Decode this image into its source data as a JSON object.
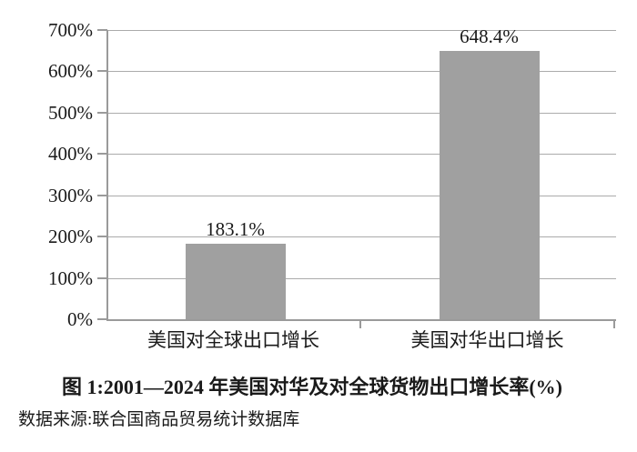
{
  "chart_data": {
    "type": "bar",
    "categories": [
      "美国对全球出口增长",
      "美国对华出口增长"
    ],
    "values": [
      183.1,
      648.4
    ],
    "value_labels": [
      "183.1%",
      "648.4%"
    ],
    "y_tick_values": [
      0,
      100,
      200,
      300,
      400,
      500,
      600,
      700
    ],
    "y_tick_labels": [
      "0%",
      "100%",
      "200%",
      "300%",
      "400%",
      "500%",
      "600%",
      "700%"
    ],
    "ylim": [
      0,
      700
    ],
    "grid": true,
    "legend": "none",
    "bar_color": "#a0a0a0",
    "grid_color": "#ababab",
    "axis_color": "#9a9a9a",
    "title": "图 1:2001—2024 年美国对华及对全球货物出口增长率(%)",
    "source": "数据来源:联合国商品贸易统计数据库"
  }
}
